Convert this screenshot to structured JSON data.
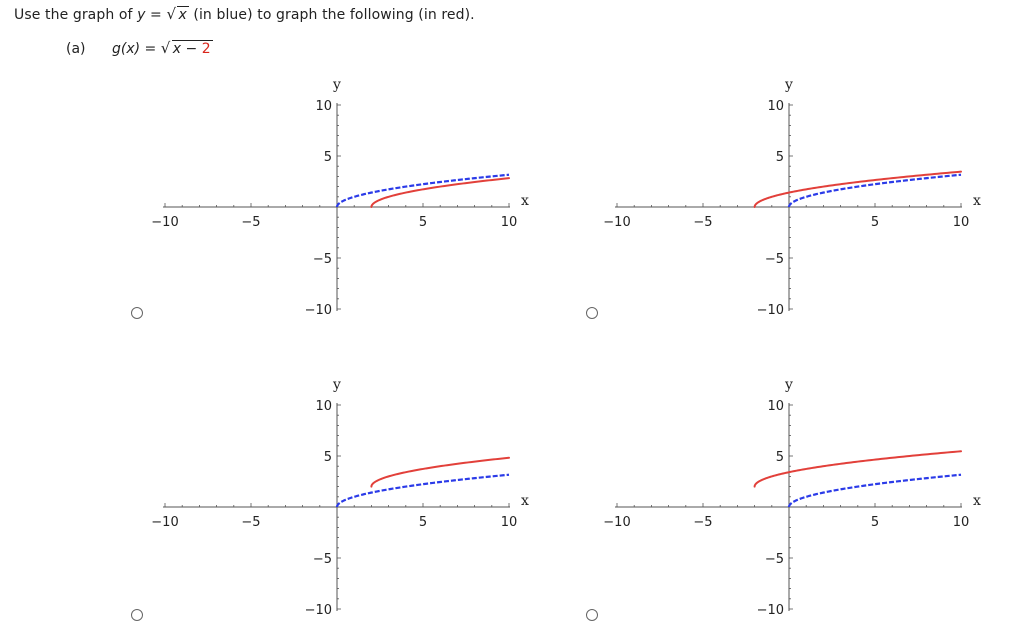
{
  "question": {
    "prefix": "Use the graph of ",
    "y_var": "y",
    "equals": " = ",
    "radicand": "x",
    "suffix": " (in blue) to graph the following (in red)."
  },
  "part": {
    "label": "(a)",
    "g_name": "g(x)",
    "equals": " = ",
    "radicand_var": "x",
    "radicand_op": " − ",
    "radicand_const": "2"
  },
  "axes": {
    "x_letter": "x",
    "y_letter": "y",
    "x_ticks": [
      "−10",
      "−5",
      "5",
      "10"
    ],
    "y_ticks": [
      "10",
      "5",
      "−5",
      "−10"
    ]
  },
  "colors": {
    "base_curve": "#2b3be8",
    "transformed_curve": "#e2403a"
  },
  "chart_data": [
    {
      "type": "line",
      "option": 1,
      "xlim": [
        -10,
        10
      ],
      "ylim": [
        -10,
        10
      ],
      "grid": false,
      "series": [
        {
          "role": "base",
          "formula": "sqrt(x)",
          "domain": [
            0,
            10
          ],
          "style": "dashed",
          "color": "blue"
        },
        {
          "role": "transformed",
          "formula": "sqrt(x-2)",
          "domain": [
            2,
            10
          ],
          "style": "solid",
          "color": "red"
        }
      ]
    },
    {
      "type": "line",
      "option": 2,
      "xlim": [
        -10,
        10
      ],
      "ylim": [
        -10,
        10
      ],
      "grid": false,
      "series": [
        {
          "role": "base",
          "formula": "sqrt(x)",
          "domain": [
            0,
            10
          ],
          "style": "dashed",
          "color": "blue"
        },
        {
          "role": "transformed",
          "formula": "sqrt(x+2)",
          "domain": [
            -2,
            10
          ],
          "style": "solid",
          "color": "red"
        }
      ]
    },
    {
      "type": "line",
      "option": 3,
      "xlim": [
        -10,
        10
      ],
      "ylim": [
        -10,
        10
      ],
      "grid": false,
      "series": [
        {
          "role": "base",
          "formula": "sqrt(x)",
          "domain": [
            0,
            10
          ],
          "style": "dashed",
          "color": "blue"
        },
        {
          "role": "transformed",
          "formula": "sqrt(x-2)+2",
          "domain": [
            2,
            10
          ],
          "style": "solid",
          "color": "red"
        }
      ]
    },
    {
      "type": "line",
      "option": 4,
      "xlim": [
        -10,
        10
      ],
      "ylim": [
        -10,
        10
      ],
      "grid": false,
      "series": [
        {
          "role": "base",
          "formula": "sqrt(x)",
          "domain": [
            0,
            10
          ],
          "style": "dashed",
          "color": "blue"
        },
        {
          "role": "transformed",
          "formula": "sqrt(x+2)+2",
          "domain": [
            -2,
            10
          ],
          "style": "solid",
          "color": "red"
        }
      ]
    }
  ]
}
